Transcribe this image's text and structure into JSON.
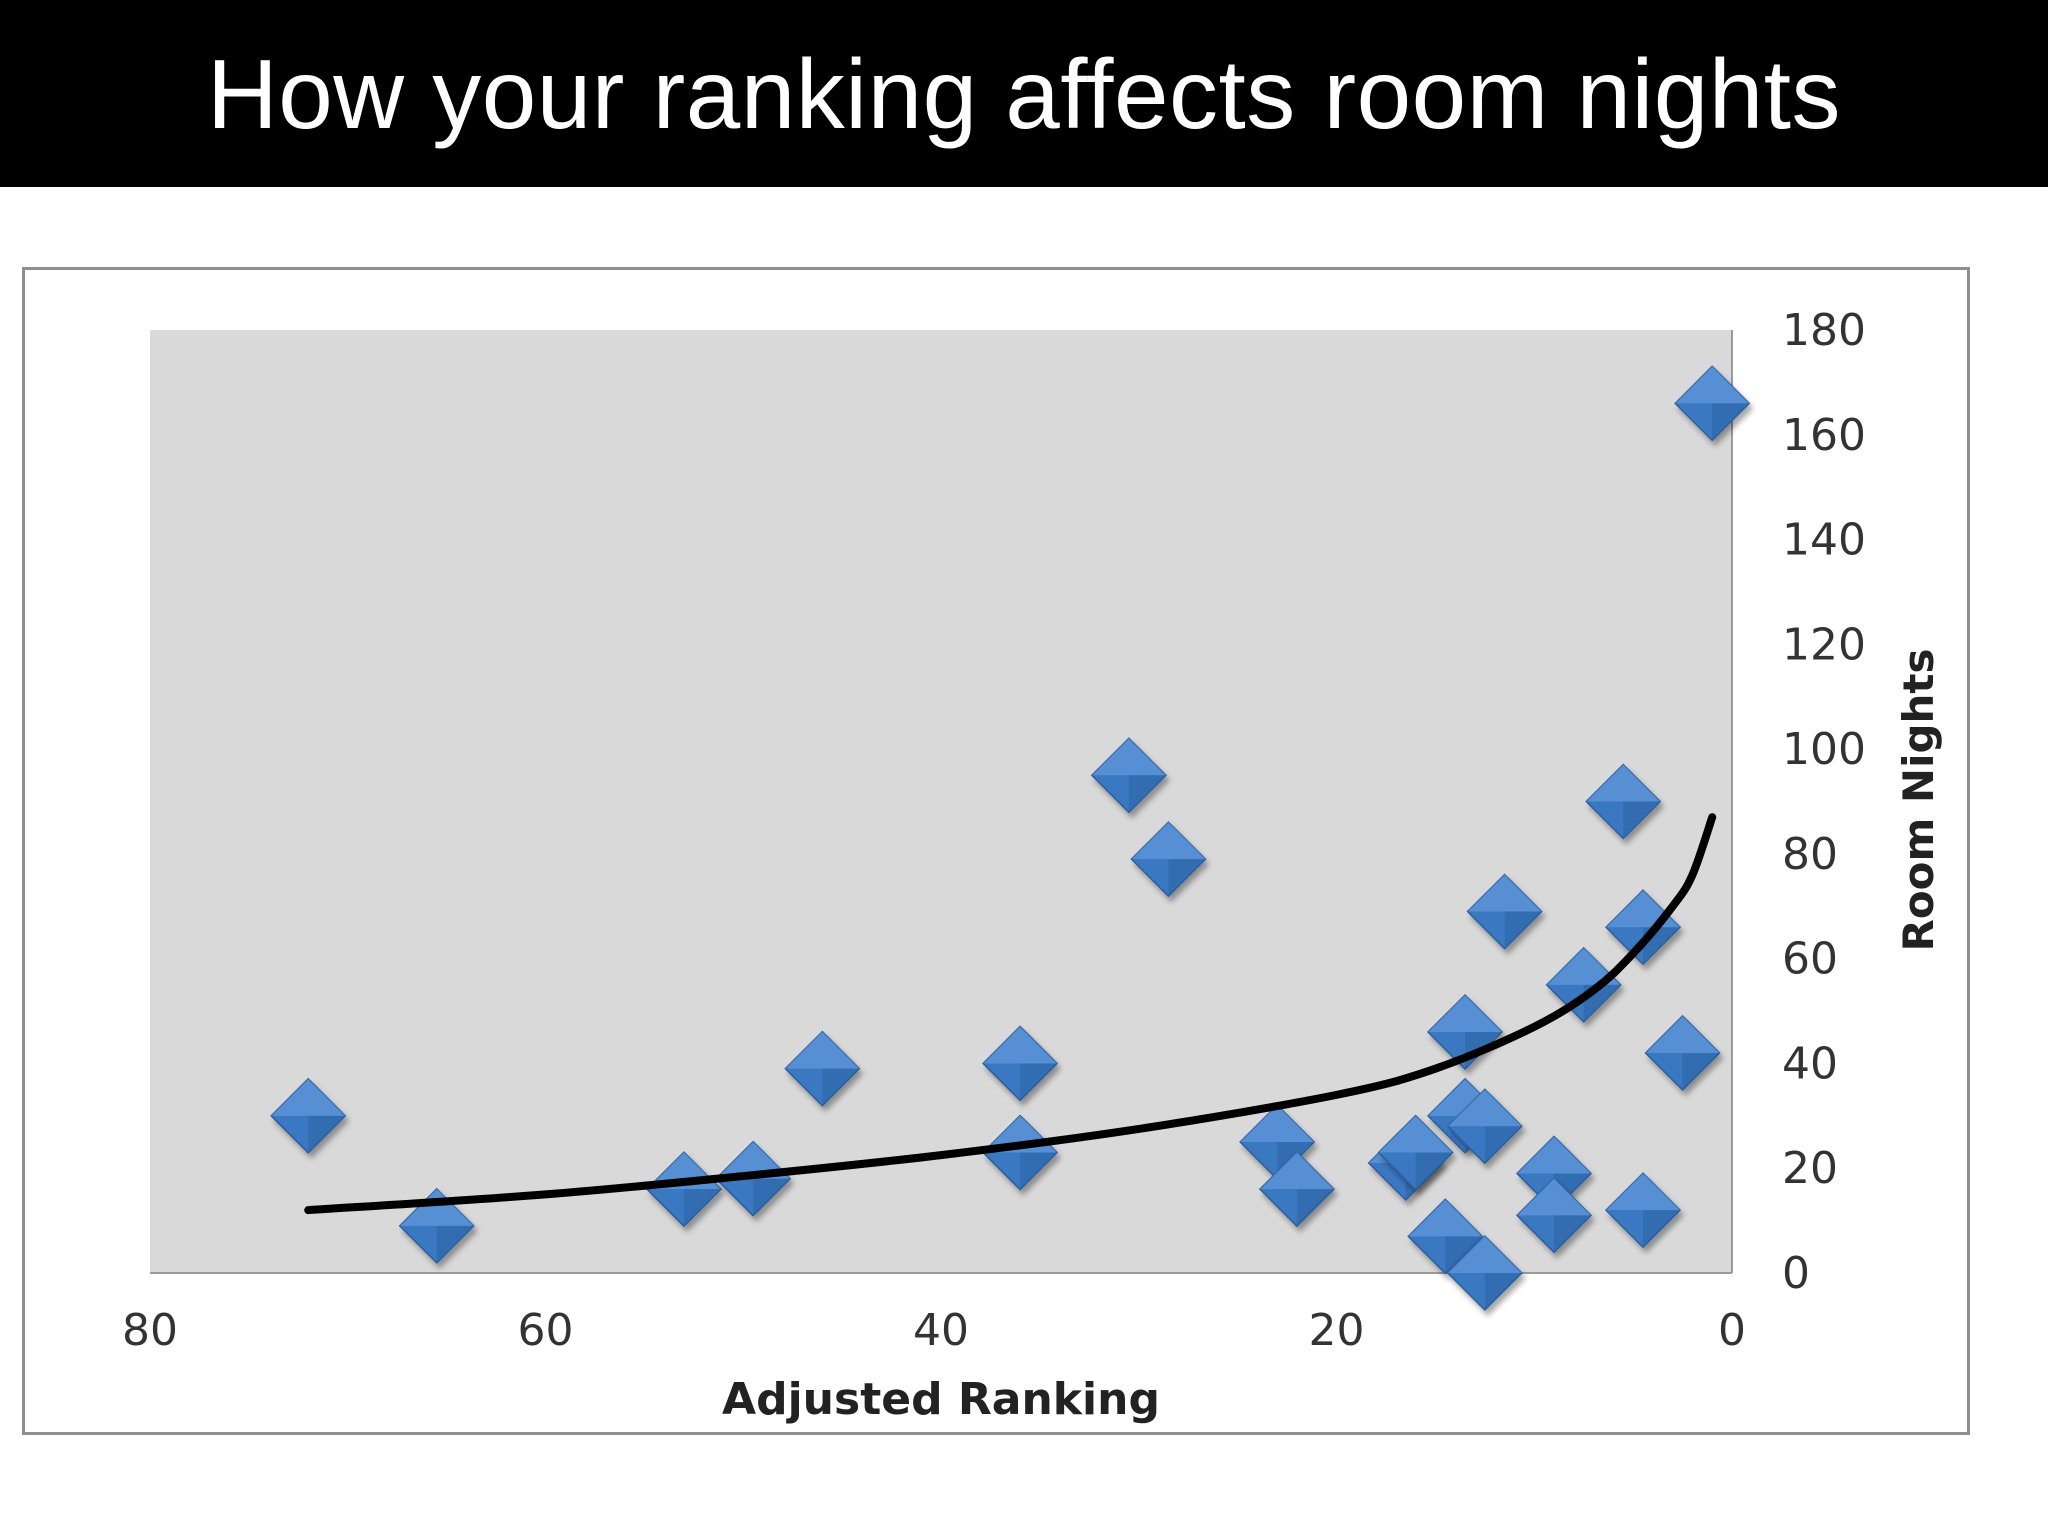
{
  "slide": {
    "title": "How your ranking affects room nights"
  },
  "colors": {
    "title_bar": "#000000",
    "title_text": "#ffffff",
    "plot_area": "#d9d9d9",
    "marker": "#3a78c2",
    "marker_light": "#6ea3e2",
    "marker_dark": "#2b5f9e",
    "trendline": "#000000",
    "frame": "#8f8f8f"
  },
  "chart_data": {
    "type": "scatter",
    "title": "",
    "xlabel": "Adjusted Ranking",
    "ylabel": "Room Nights",
    "x_reversed": true,
    "xlim": [
      0,
      80
    ],
    "ylim": [
      0,
      180
    ],
    "x_ticks": [
      80,
      60,
      40,
      20,
      0
    ],
    "y_ticks": [
      0,
      20,
      40,
      60,
      80,
      100,
      120,
      140,
      160,
      180
    ],
    "y_axis_side": "right",
    "grid": false,
    "legend": "none",
    "marker": "diamond",
    "series": [
      {
        "points": [
          [
            72,
            30
          ],
          [
            65.5,
            9
          ],
          [
            53,
            16
          ],
          [
            49.5,
            18
          ],
          [
            46,
            39
          ],
          [
            36,
            40
          ],
          [
            36,
            23
          ],
          [
            30.5,
            95
          ],
          [
            28.5,
            79
          ],
          [
            23,
            25
          ],
          [
            22,
            16
          ],
          [
            16.5,
            21
          ],
          [
            16,
            23
          ],
          [
            14.5,
            7
          ],
          [
            13.5,
            46
          ],
          [
            13.5,
            30
          ],
          [
            12.5,
            28
          ],
          [
            12.5,
            0
          ],
          [
            11.5,
            69
          ],
          [
            9,
            19
          ],
          [
            9,
            11
          ],
          [
            7.5,
            55
          ],
          [
            5.5,
            90
          ],
          [
            4.5,
            66
          ],
          [
            4.5,
            12
          ],
          [
            2.5,
            42
          ],
          [
            1,
            166
          ]
        ]
      }
    ],
    "trendline": {
      "type": "curve",
      "points": [
        [
          72,
          12
        ],
        [
          60,
          15
        ],
        [
          50,
          18.5
        ],
        [
          40,
          22.5
        ],
        [
          30,
          27.5
        ],
        [
          20,
          34
        ],
        [
          15,
          39
        ],
        [
          10,
          47
        ],
        [
          7,
          54
        ],
        [
          5,
          61
        ],
        [
          3,
          70
        ],
        [
          2,
          76
        ],
        [
          1,
          87
        ]
      ]
    }
  }
}
